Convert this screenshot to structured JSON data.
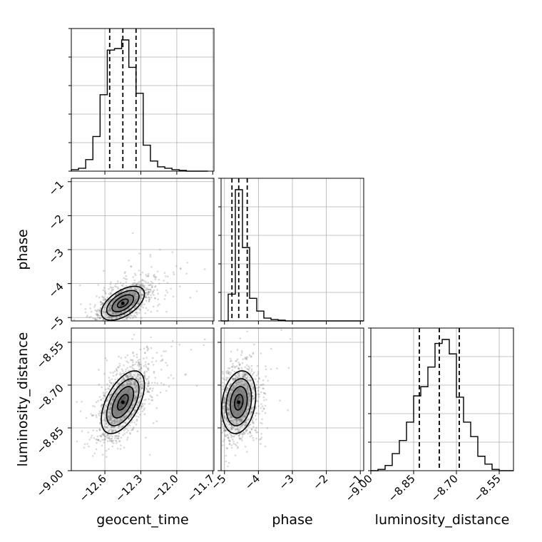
{
  "chart_data": {
    "type": "corner",
    "parameters": [
      "geocent_time",
      "phase",
      "luminosity_distance"
    ],
    "axes": {
      "geocent_time": {
        "range": [
          -12.88,
          -11.69
        ],
        "ticks": [
          -12.6,
          -12.3,
          -12.0,
          -11.7
        ],
        "tick_labels": [
          "−12.6",
          "−12.3",
          "−12.0",
          "−11.7"
        ]
      },
      "phase": {
        "range": [
          -5.1,
          -0.9
        ],
        "ticks": [
          -5,
          -4,
          -3,
          -2,
          -1
        ],
        "tick_labels": [
          "−5",
          "−4",
          "−3",
          "−2",
          "−1"
        ]
      },
      "luminosity_distance": {
        "range": [
          -9.0,
          -8.5
        ],
        "ticks": [
          -9.0,
          -8.85,
          -8.7,
          -8.55
        ],
        "tick_labels": [
          "−9.00",
          "−8.85",
          "−8.70",
          "−8.55"
        ]
      }
    },
    "marginals": {
      "geocent_time": {
        "bin_edges": [
          -12.88,
          -12.82,
          -12.76,
          -12.7,
          -12.64,
          -12.58,
          -12.52,
          -12.46,
          -12.4,
          -12.34,
          -12.28,
          -12.22,
          -12.16,
          -12.1,
          -12.04,
          -11.98,
          -11.92,
          -11.86,
          -11.8,
          -11.74
        ],
        "counts": [
          0.01,
          0.02,
          0.08,
          0.24,
          0.53,
          0.84,
          0.85,
          0.91,
          0.72,
          0.54,
          0.18,
          0.07,
          0.03,
          0.02,
          0.01,
          0.005,
          0.0,
          0.0,
          0.0
        ],
        "quantiles": [
          -12.56,
          -12.45,
          -12.34
        ]
      },
      "phase": {
        "bin_edges": [
          -5.1,
          -4.89,
          -4.68,
          -4.47,
          -4.26,
          -4.05,
          -3.84,
          -3.63,
          -3.42,
          -3.21,
          -3.0,
          -2.79,
          -2.58,
          -2.37,
          -2.16,
          -1.95,
          -1.74,
          -1.53,
          -1.32,
          -1.11,
          -0.9
        ],
        "counts": [
          0.0,
          0.19,
          0.93,
          0.52,
          0.16,
          0.07,
          0.02,
          0.01,
          0.005,
          0.0,
          0.0,
          0.0,
          0.0,
          0.0,
          0.0,
          0.0,
          0.0,
          0.0,
          0.0,
          0.0
        ],
        "quantiles": [
          -4.78,
          -4.58,
          -4.33
        ]
      },
      "luminosity_distance": {
        "bin_edges": [
          -9.0,
          -8.975,
          -8.95,
          -8.925,
          -8.9,
          -8.875,
          -8.85,
          -8.825,
          -8.8,
          -8.775,
          -8.75,
          -8.725,
          -8.7,
          -8.675,
          -8.65,
          -8.625,
          -8.6,
          -8.575,
          -8.55,
          -8.525,
          -8.5
        ],
        "counts": [
          0.0,
          0.01,
          0.04,
          0.13,
          0.23,
          0.37,
          0.57,
          0.64,
          0.79,
          0.97,
          1.0,
          0.89,
          0.56,
          0.37,
          0.26,
          0.11,
          0.05,
          0.01,
          0.0,
          0.0
        ],
        "quantiles": [
          -8.83,
          -8.76,
          -8.69
        ]
      }
    },
    "correlations": {
      "phase|geocent_time": 0.55,
      "luminosity_distance|geocent_time": 0.55,
      "luminosity_distance|phase": 0.2
    },
    "centers": {
      "geocent_time": -12.45,
      "phase": -4.58,
      "luminosity_distance": -8.76
    },
    "spreads": {
      "geocent_time": 0.09,
      "phase": 0.25,
      "luminosity_distance": 0.055
    },
    "contour_levels": [
      0.5,
      1.0,
      1.5,
      2.0
    ],
    "grid": true
  }
}
